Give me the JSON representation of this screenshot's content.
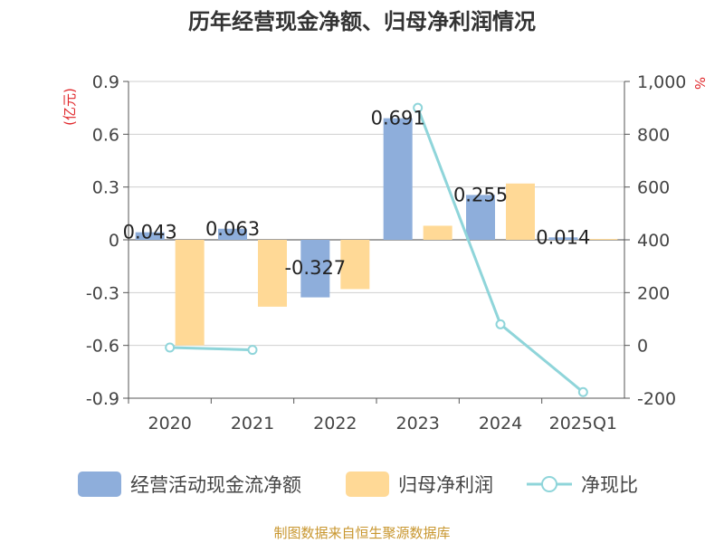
{
  "chart_data": {
    "type": "bar",
    "title": "历年经营现金净额、归母净利润情况",
    "categories": [
      "2020",
      "2021",
      "2022",
      "2023",
      "2024",
      "2025Q1"
    ],
    "series": [
      {
        "name": "经营活动现金流净额",
        "kind": "bar",
        "axis": "left",
        "color": "#8eaedb",
        "values": [
          0.043,
          0.063,
          -0.327,
          0.691,
          0.255,
          0.014
        ],
        "labels": [
          "0.043",
          "0.063",
          "-0.327",
          "0.691",
          "0.255",
          "0.014"
        ]
      },
      {
        "name": "归母净利润",
        "kind": "bar",
        "axis": "left",
        "color": "#ffd996",
        "values": [
          -0.6,
          -0.38,
          -0.28,
          0.08,
          0.32,
          0.005
        ]
      },
      {
        "name": "净现比",
        "kind": "line",
        "axis": "right",
        "color": "#8fd5da",
        "values": [
          -8,
          -17,
          null,
          900,
          80,
          -177
        ]
      }
    ],
    "y_left": {
      "unit": "(亿元)",
      "ylim": [
        -0.9,
        0.9
      ],
      "ticks": [
        "0.9",
        "0.6",
        "0.3",
        "0",
        "-0.3",
        "-0.6",
        "-0.9"
      ]
    },
    "y_right": {
      "unit": "%",
      "ylim": [
        -200,
        1000
      ],
      "ticks": [
        "1,000",
        "800",
        "600",
        "400",
        "200",
        "0",
        "-200"
      ]
    },
    "grid": true,
    "legend_position": "bottom",
    "source": "制图数据来自恒生聚源数据库"
  }
}
